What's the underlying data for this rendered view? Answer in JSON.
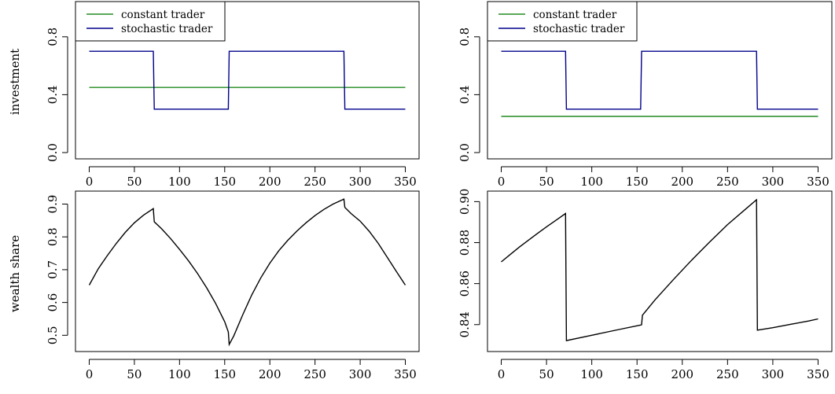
{
  "chart_data": [
    {
      "type": "line",
      "ylabel": "investment",
      "xlim": [
        0,
        350
      ],
      "ylim": [
        0,
        1
      ],
      "x_ticks": [
        0,
        50,
        100,
        150,
        200,
        250,
        300,
        350
      ],
      "y_ticks": [
        0.0,
        0.4,
        0.8
      ],
      "y_tick_labels": [
        "0.0",
        "0.4",
        "0.8"
      ],
      "legend": "top-left",
      "series": [
        {
          "name": "constant trader",
          "color": "#228B22",
          "points": [
            [
              0,
              0.45
            ],
            [
              350,
              0.45
            ]
          ]
        },
        {
          "name": "stochastic trader",
          "color": "#00008B",
          "points": [
            [
              0,
              0.7
            ],
            [
              71,
              0.7
            ],
            [
              72,
              0.3
            ],
            [
              154,
              0.3
            ],
            [
              155,
              0.7
            ],
            [
              282,
              0.7
            ],
            [
              283,
              0.3
            ],
            [
              350,
              0.3
            ]
          ]
        }
      ]
    },
    {
      "type": "line",
      "ylabel": "",
      "xlim": [
        0,
        350
      ],
      "ylim": [
        0,
        1
      ],
      "x_ticks": [
        0,
        50,
        100,
        150,
        200,
        250,
        300,
        350
      ],
      "y_ticks": [
        0.0,
        0.4,
        0.8
      ],
      "y_tick_labels": [
        "0.0",
        "0.4",
        "0.8"
      ],
      "legend": "top-left",
      "series": [
        {
          "name": "constant trader",
          "color": "#228B22",
          "points": [
            [
              0,
              0.25
            ],
            [
              350,
              0.25
            ]
          ]
        },
        {
          "name": "stochastic trader",
          "color": "#00008B",
          "points": [
            [
              0,
              0.7
            ],
            [
              71,
              0.7
            ],
            [
              72,
              0.3
            ],
            [
              154,
              0.3
            ],
            [
              155,
              0.7
            ],
            [
              282,
              0.7
            ],
            [
              283,
              0.3
            ],
            [
              350,
              0.3
            ]
          ]
        }
      ]
    },
    {
      "type": "line",
      "ylabel": "wealth share",
      "xlim": [
        0,
        350
      ],
      "ylim": [
        0.47,
        0.92
      ],
      "x_ticks": [
        0,
        50,
        100,
        150,
        200,
        250,
        300,
        350
      ],
      "y_ticks": [
        0.5,
        0.6,
        0.7,
        0.8,
        0.9
      ],
      "y_tick_labels": [
        "0.5",
        "0.6",
        "0.7",
        "0.8",
        "0.9"
      ],
      "series": [
        {
          "name": "",
          "color": "#000000",
          "points": [
            [
              0,
              0.653
            ],
            [
              10,
              0.703
            ],
            [
              20,
              0.743
            ],
            [
              30,
              0.78
            ],
            [
              40,
              0.814
            ],
            [
              50,
              0.843
            ],
            [
              60,
              0.866
            ],
            [
              71,
              0.886
            ],
            [
              72,
              0.846
            ],
            [
              80,
              0.825
            ],
            [
              90,
              0.795
            ],
            [
              100,
              0.762
            ],
            [
              110,
              0.727
            ],
            [
              120,
              0.688
            ],
            [
              130,
              0.645
            ],
            [
              140,
              0.597
            ],
            [
              150,
              0.541
            ],
            [
              154,
              0.51
            ],
            [
              155,
              0.472
            ],
            [
              160,
              0.498
            ],
            [
              170,
              0.563
            ],
            [
              180,
              0.623
            ],
            [
              190,
              0.675
            ],
            [
              200,
              0.72
            ],
            [
              210,
              0.758
            ],
            [
              220,
              0.79
            ],
            [
              230,
              0.818
            ],
            [
              240,
              0.843
            ],
            [
              250,
              0.865
            ],
            [
              260,
              0.884
            ],
            [
              270,
              0.9
            ],
            [
              282,
              0.915
            ],
            [
              283,
              0.89
            ],
            [
              290,
              0.871
            ],
            [
              300,
              0.848
            ],
            [
              310,
              0.817
            ],
            [
              320,
              0.78
            ],
            [
              330,
              0.738
            ],
            [
              340,
              0.695
            ],
            [
              350,
              0.653
            ]
          ]
        }
      ]
    },
    {
      "type": "line",
      "ylabel": "",
      "xlim": [
        0,
        350
      ],
      "ylim": [
        0.83,
        0.902
      ],
      "x_ticks": [
        0,
        50,
        100,
        150,
        200,
        250,
        300,
        350
      ],
      "y_ticks": [
        0.84,
        0.86,
        0.88,
        0.9
      ],
      "y_tick_labels": [
        "0.84",
        "0.86",
        "0.88",
        "0.90"
      ],
      "series": [
        {
          "name": "",
          "color": "#000000",
          "points": [
            [
              0,
              0.8706
            ],
            [
              10,
              0.8742
            ],
            [
              20,
              0.8778
            ],
            [
              30,
              0.8812
            ],
            [
              40,
              0.8845
            ],
            [
              50,
              0.8877
            ],
            [
              60,
              0.8908
            ],
            [
              71,
              0.8942
            ],
            [
              72,
              0.8322
            ],
            [
              100,
              0.8348
            ],
            [
              130,
              0.8376
            ],
            [
              154,
              0.8398
            ],
            [
              155,
              0.8399
            ],
            [
              156,
              0.8446
            ],
            [
              170,
              0.8521
            ],
            [
              190,
              0.8619
            ],
            [
              210,
              0.8713
            ],
            [
              230,
              0.8802
            ],
            [
              250,
              0.8888
            ],
            [
              270,
              0.8964
            ],
            [
              282,
              0.9009
            ],
            [
              283,
              0.8373
            ],
            [
              300,
              0.8385
            ],
            [
              320,
              0.8402
            ],
            [
              340,
              0.8418
            ],
            [
              350,
              0.8428
            ]
          ]
        }
      ]
    }
  ]
}
